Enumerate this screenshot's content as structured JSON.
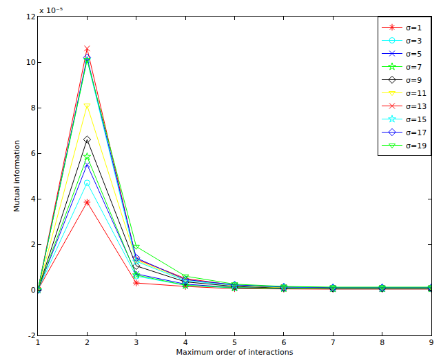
{
  "chart_data": {
    "type": "line",
    "x_label": "Maximum order of interactions",
    "y_label": "Mutual information",
    "annotations": [
      "x 10⁻⁵"
    ],
    "x": [
      1,
      2,
      3,
      4,
      5,
      6,
      7,
      8,
      9
    ],
    "xlim": [
      1,
      9
    ],
    "xticks": [
      1,
      2,
      3,
      4,
      5,
      6,
      7,
      8,
      9
    ],
    "ylim": [
      -2,
      12
    ],
    "yticks": [
      -2,
      0,
      2,
      4,
      6,
      8,
      10,
      12
    ],
    "grid": false,
    "legend": "upper right",
    "series": [
      {
        "name": "σ=1",
        "color": "#ff0000",
        "marker": "asterisk",
        "values": [
          0,
          3.85,
          0.3,
          0.15,
          0.05,
          0.03,
          0.03,
          0.03,
          0.03
        ]
      },
      {
        "name": "σ=3",
        "color": "#00ffff",
        "marker": "circle",
        "values": [
          0,
          4.7,
          0.6,
          0.2,
          0.08,
          0.05,
          0.04,
          0.04,
          0.04
        ]
      },
      {
        "name": "σ=5",
        "color": "#0000ff",
        "marker": "x",
        "values": [
          0,
          5.5,
          0.7,
          0.25,
          0.1,
          0.06,
          0.05,
          0.05,
          0.05
        ]
      },
      {
        "name": "σ=7",
        "color": "#00ff00",
        "marker": "star",
        "values": [
          0,
          5.85,
          0.65,
          0.2,
          0.1,
          0.06,
          0.05,
          0.05,
          0.05
        ]
      },
      {
        "name": "σ=9",
        "color": "#000000",
        "marker": "diamond",
        "values": [
          0,
          6.6,
          1.05,
          0.35,
          0.15,
          0.08,
          0.06,
          0.06,
          0.06
        ]
      },
      {
        "name": "σ=11",
        "color": "#ffff00",
        "marker": "triangle-down",
        "values": [
          0,
          8.1,
          1.3,
          0.45,
          0.18,
          0.1,
          0.07,
          0.07,
          0.07
        ]
      },
      {
        "name": "σ=13",
        "color": "#ff0000",
        "marker": "x",
        "values": [
          0,
          10.6,
          1.35,
          0.5,
          0.2,
          0.12,
          0.08,
          0.08,
          0.08
        ]
      },
      {
        "name": "σ=15",
        "color": "#00ffff",
        "marker": "star",
        "values": [
          0,
          10.1,
          1.25,
          0.4,
          0.2,
          0.12,
          0.09,
          0.09,
          0.09
        ]
      },
      {
        "name": "σ=17",
        "color": "#0000ff",
        "marker": "diamond",
        "values": [
          0,
          10.2,
          1.4,
          0.45,
          0.22,
          0.13,
          0.1,
          0.1,
          0.1
        ]
      },
      {
        "name": "σ=19",
        "color": "#00ff00",
        "marker": "triangle-down",
        "values": [
          0,
          10.1,
          1.9,
          0.6,
          0.25,
          0.15,
          0.12,
          0.12,
          0.12
        ]
      }
    ]
  }
}
